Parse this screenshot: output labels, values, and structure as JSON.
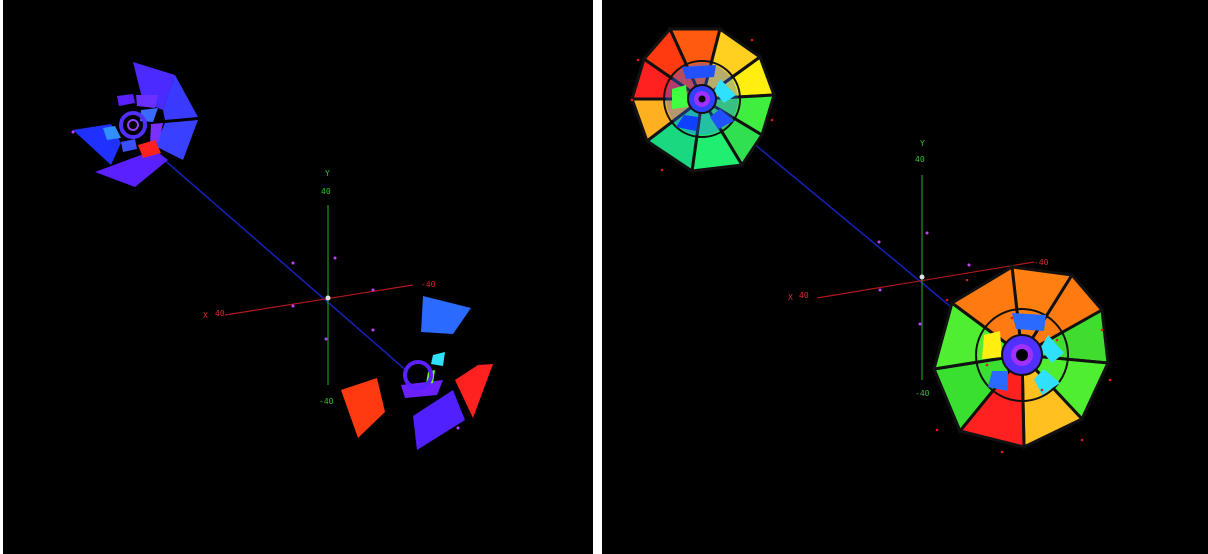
{
  "colors": {
    "background": "#000000",
    "x_axis": "#b01818",
    "y_axis": "#1a9a1a",
    "beam_axis": "#1420b0",
    "hit_marker": "#c040ff",
    "red_hits": "#e01818"
  },
  "left_view": {
    "axis_labels": {
      "x_name": "X",
      "x_pos": "40",
      "x_neg": "-40",
      "y_name": "Y",
      "y_pos": "40",
      "y_neg": "-40"
    }
  },
  "right_view": {
    "axis_labels": {
      "x_name": "X",
      "x_pos": "40",
      "x_neg": "-40",
      "y_name": "Y",
      "y_pos": "40",
      "y_neg": "-40"
    }
  }
}
